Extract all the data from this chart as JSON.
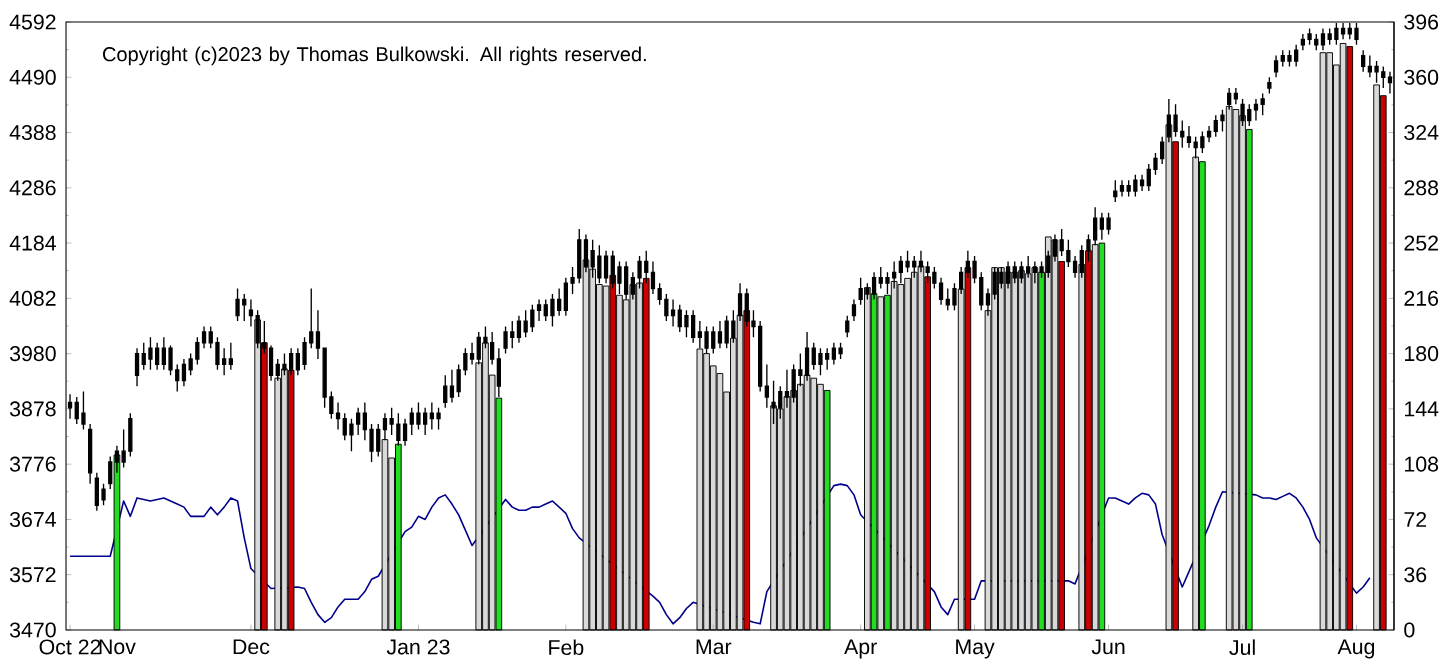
{
  "chart_data": {
    "type": "candlestick",
    "annotations": [
      "Copyright (c)2023 by Thomas Bulkowski. All rights reserved."
    ],
    "categories": [
      "Oct 22",
      null,
      null,
      null,
      null,
      null,
      null,
      "Nov",
      null,
      null,
      null,
      null,
      null,
      null,
      null,
      null,
      null,
      null,
      null,
      null,
      null,
      null,
      null,
      null,
      null,
      null,
      null,
      "Dec",
      null,
      null,
      null,
      null,
      null,
      null,
      null,
      null,
      null,
      null,
      null,
      null,
      null,
      null,
      null,
      null,
      null,
      null,
      null,
      null,
      null,
      null,
      null,
      null,
      "Jan 23",
      null,
      null,
      null,
      null,
      null,
      null,
      null,
      null,
      null,
      null,
      null,
      null,
      null,
      null,
      null,
      null,
      null,
      null,
      null,
      null,
      null,
      "Feb",
      null,
      null,
      null,
      null,
      null,
      null,
      null,
      null,
      null,
      null,
      null,
      null,
      null,
      null,
      null,
      null,
      null,
      null,
      null,
      null,
      null,
      "Mar",
      null,
      null,
      null,
      null,
      null,
      null,
      null,
      null,
      null,
      null,
      null,
      null,
      null,
      null,
      null,
      null,
      null,
      null,
      null,
      null,
      null,
      "Apr",
      null,
      null,
      null,
      null,
      null,
      null,
      null,
      null,
      null,
      null,
      null,
      null,
      null,
      null,
      null,
      null,
      "May",
      null,
      null,
      null,
      null,
      null,
      null,
      null,
      null,
      null,
      null,
      null,
      null,
      null,
      null,
      null,
      null,
      null,
      null,
      null,
      "Jun",
      null,
      null,
      null,
      null,
      null,
      null,
      null,
      null,
      null,
      null,
      null,
      null,
      null,
      null,
      null,
      null,
      null,
      null,
      null,
      "Jul",
      null,
      null,
      null,
      null,
      null,
      null,
      null,
      null,
      null,
      null,
      null,
      null,
      null,
      null,
      null,
      null,
      "Aug",
      null,
      null,
      null,
      null,
      null
    ],
    "ohlc": [
      [
        3880,
        3905,
        3860,
        3890
      ],
      [
        3890,
        3900,
        3850,
        3860
      ],
      [
        3870,
        3910,
        3840,
        3850
      ],
      [
        3840,
        3850,
        3740,
        3760
      ],
      [
        3750,
        3760,
        3690,
        3700
      ],
      [
        3710,
        3740,
        3700,
        3730
      ],
      [
        3740,
        3790,
        3730,
        3780
      ],
      [
        3780,
        3810,
        3760,
        3800
      ],
      [
        3800,
        3840,
        3770,
        3780
      ],
      [
        3800,
        3870,
        3790,
        3860
      ],
      [
        3940,
        3990,
        3920,
        3980
      ],
      [
        3980,
        4000,
        3950,
        3960
      ],
      [
        3970,
        4010,
        3950,
        3990
      ],
      [
        3990,
        4000,
        3950,
        3960
      ],
      [
        3960,
        4010,
        3950,
        3990
      ],
      [
        3990,
        3995,
        3940,
        3950
      ],
      [
        3950,
        3960,
        3910,
        3930
      ],
      [
        3930,
        3970,
        3920,
        3960
      ],
      [
        3950,
        3980,
        3940,
        3970
      ],
      [
        3970,
        4010,
        3960,
        4000
      ],
      [
        4000,
        4030,
        3990,
        4020
      ],
      [
        4020,
        4030,
        3990,
        4000
      ],
      [
        4000,
        4010,
        3950,
        3960
      ],
      [
        3960,
        3990,
        3940,
        3970
      ],
      [
        3970,
        4000,
        3950,
        3960
      ],
      [
        4050,
        4100,
        4040,
        4080
      ],
      [
        4080,
        4090,
        4040,
        4070
      ],
      [
        4060,
        4080,
        4030,
        4050
      ],
      [
        4050,
        4060,
        3990,
        4000
      ],
      [
        4000,
        4040,
        3980,
        3990
      ],
      [
        3990,
        3995,
        3930,
        3940
      ],
      [
        3940,
        3970,
        3930,
        3960
      ],
      [
        3960,
        3980,
        3940,
        3950
      ],
      [
        3950,
        3990,
        3940,
        3980
      ],
      [
        3980,
        3990,
        3940,
        3950
      ],
      [
        3960,
        4010,
        3950,
        4000
      ],
      [
        4000,
        4100,
        3990,
        4020
      ],
      [
        4020,
        4060,
        3970,
        3990
      ],
      [
        3990,
        3990,
        3880,
        3900
      ],
      [
        3900,
        3910,
        3860,
        3870
      ],
      [
        3870,
        3890,
        3840,
        3860
      ],
      [
        3860,
        3870,
        3820,
        3830
      ],
      [
        3830,
        3860,
        3800,
        3850
      ],
      [
        3850,
        3880,
        3830,
        3870
      ],
      [
        3870,
        3890,
        3820,
        3840
      ],
      [
        3840,
        3850,
        3780,
        3800
      ],
      [
        3800,
        3850,
        3790,
        3840
      ],
      [
        3840,
        3870,
        3820,
        3860
      ],
      [
        3860,
        3880,
        3830,
        3850
      ],
      [
        3850,
        3870,
        3810,
        3820
      ],
      [
        3820,
        3860,
        3810,
        3850
      ],
      [
        3850,
        3880,
        3830,
        3870
      ],
      [
        3870,
        3890,
        3840,
        3850
      ],
      [
        3850,
        3880,
        3830,
        3870
      ],
      [
        3870,
        3890,
        3840,
        3860
      ],
      [
        3860,
        3880,
        3840,
        3870
      ],
      [
        3890,
        3940,
        3880,
        3920
      ],
      [
        3920,
        3950,
        3890,
        3900
      ],
      [
        3910,
        3960,
        3900,
        3950
      ],
      [
        3950,
        3990,
        3940,
        3980
      ],
      [
        3980,
        4000,
        3960,
        3970
      ],
      [
        3970,
        4020,
        3960,
        4010
      ],
      [
        4010,
        4030,
        3990,
        4000
      ],
      [
        4000,
        4020,
        3960,
        3970
      ],
      [
        3970,
        3990,
        3900,
        3920
      ],
      [
        3990,
        4030,
        3980,
        4020
      ],
      [
        4020,
        4040,
        3990,
        4010
      ],
      [
        4010,
        4050,
        4000,
        4040
      ],
      [
        4040,
        4060,
        4010,
        4020
      ],
      [
        4030,
        4070,
        4020,
        4060
      ],
      [
        4060,
        4080,
        4040,
        4070
      ],
      [
        4070,
        4080,
        4040,
        4050
      ],
      [
        4050,
        4090,
        4030,
        4080
      ],
      [
        4080,
        4100,
        4050,
        4060
      ],
      [
        4060,
        4120,
        4050,
        4110
      ],
      [
        4110,
        4140,
        4090,
        4120
      ],
      [
        4120,
        4210,
        4110,
        4190
      ],
      [
        4190,
        4200,
        4130,
        4140
      ],
      [
        4140,
        4190,
        4120,
        4170
      ],
      [
        4160,
        4180,
        4110,
        4120
      ],
      [
        4120,
        4170,
        4110,
        4160
      ],
      [
        4160,
        4170,
        4100,
        4110
      ],
      [
        4110,
        4150,
        4090,
        4140
      ],
      [
        4140,
        4150,
        4080,
        4090
      ],
      [
        4090,
        4130,
        4080,
        4120
      ],
      [
        4120,
        4160,
        4100,
        4150
      ],
      [
        4150,
        4170,
        4110,
        4130
      ],
      [
        4130,
        4150,
        4090,
        4100
      ],
      [
        4100,
        4110,
        4070,
        4080
      ],
      [
        4080,
        4090,
        4040,
        4050
      ],
      [
        4050,
        4080,
        4030,
        4060
      ],
      [
        4060,
        4070,
        4020,
        4030
      ],
      [
        4030,
        4060,
        4010,
        4050
      ],
      [
        4050,
        4060,
        4000,
        4010
      ],
      [
        4010,
        4040,
        3990,
        4020
      ],
      [
        4020,
        4030,
        3980,
        3990
      ],
      [
        3990,
        4030,
        3980,
        4020
      ],
      [
        4020,
        4040,
        3990,
        4000
      ],
      [
        4000,
        4050,
        3990,
        4040
      ],
      [
        4040,
        4060,
        4000,
        4010
      ],
      [
        4050,
        4110,
        4040,
        4090
      ],
      [
        4090,
        4100,
        4030,
        4040
      ],
      [
        4040,
        4060,
        4010,
        4030
      ],
      [
        4030,
        4040,
        3910,
        3920
      ],
      [
        3920,
        3960,
        3880,
        3900
      ],
      [
        3890,
        3930,
        3850,
        3880
      ],
      [
        3880,
        3920,
        3860,
        3910
      ],
      [
        3910,
        3950,
        3880,
        3900
      ],
      [
        3900,
        3960,
        3890,
        3950
      ],
      [
        3950,
        3980,
        3920,
        3940
      ],
      [
        3940,
        4020,
        3930,
        3990
      ],
      [
        3990,
        4000,
        3950,
        3960
      ],
      [
        3960,
        3990,
        3940,
        3980
      ],
      [
        3980,
        3990,
        3950,
        3970
      ],
      [
        3970,
        4000,
        3960,
        3990
      ],
      [
        3990,
        4000,
        3970,
        3980
      ],
      [
        4020,
        4050,
        4010,
        4040
      ],
      [
        4050,
        4080,
        4040,
        4070
      ],
      [
        4080,
        4120,
        4070,
        4100
      ],
      [
        4100,
        4110,
        4080,
        4090
      ],
      [
        4090,
        4130,
        4080,
        4120
      ],
      [
        4110,
        4140,
        4100,
        4120
      ],
      [
        4110,
        4130,
        4090,
        4120
      ],
      [
        4120,
        4150,
        4100,
        4130
      ],
      [
        4130,
        4160,
        4110,
        4150
      ],
      [
        4150,
        4170,
        4130,
        4140
      ],
      [
        4140,
        4160,
        4120,
        4150
      ],
      [
        4150,
        4170,
        4130,
        4140
      ],
      [
        4140,
        4150,
        4110,
        4130
      ],
      [
        4130,
        4140,
        4100,
        4110
      ],
      [
        4110,
        4120,
        4070,
        4080
      ],
      [
        4080,
        4100,
        4060,
        4070
      ],
      [
        4070,
        4110,
        4060,
        4100
      ],
      [
        4100,
        4140,
        4090,
        4130
      ],
      [
        4130,
        4170,
        4120,
        4150
      ],
      [
        4150,
        4160,
        4110,
        4120
      ],
      [
        4120,
        4130,
        4060,
        4070
      ],
      [
        4070,
        4100,
        4050,
        4090
      ],
      [
        4090,
        4140,
        4080,
        4130
      ],
      [
        4130,
        4140,
        4100,
        4110
      ],
      [
        4110,
        4150,
        4100,
        4140
      ],
      [
        4140,
        4150,
        4110,
        4120
      ],
      [
        4120,
        4150,
        4110,
        4140
      ],
      [
        4140,
        4160,
        4120,
        4130
      ],
      [
        4130,
        4150,
        4110,
        4140
      ],
      [
        4140,
        4150,
        4120,
        4130
      ],
      [
        4130,
        4170,
        4120,
        4160
      ],
      [
        4160,
        4200,
        4150,
        4190
      ],
      [
        4190,
        4210,
        4160,
        4170
      ],
      [
        4170,
        4190,
        4140,
        4150
      ],
      [
        4150,
        4160,
        4120,
        4130
      ],
      [
        4130,
        4180,
        4120,
        4170
      ],
      [
        4170,
        4200,
        4150,
        4190
      ],
      [
        4190,
        4250,
        4180,
        4230
      ],
      [
        4230,
        4240,
        4190,
        4210
      ],
      [
        4210,
        4240,
        4200,
        4230
      ],
      [
        4270,
        4300,
        4260,
        4280
      ],
      [
        4280,
        4300,
        4270,
        4290
      ],
      [
        4290,
        4300,
        4270,
        4280
      ],
      [
        4280,
        4310,
        4270,
        4300
      ],
      [
        4300,
        4310,
        4280,
        4290
      ],
      [
        4290,
        4330,
        4280,
        4320
      ],
      [
        4320,
        4350,
        4310,
        4340
      ],
      [
        4340,
        4380,
        4330,
        4370
      ],
      [
        4380,
        4450,
        4370,
        4420
      ],
      [
        4420,
        4440,
        4380,
        4390
      ],
      [
        4390,
        4410,
        4360,
        4380
      ],
      [
        4380,
        4400,
        4360,
        4370
      ],
      [
        4370,
        4380,
        4340,
        4360
      ],
      [
        4360,
        4390,
        4350,
        4380
      ],
      [
        4380,
        4400,
        4370,
        4390
      ],
      [
        4390,
        4420,
        4380,
        4410
      ],
      [
        4410,
        4430,
        4390,
        4420
      ],
      [
        4440,
        4470,
        4430,
        4460
      ],
      [
        4460,
        4470,
        4440,
        4450
      ],
      [
        4440,
        4450,
        4400,
        4410
      ],
      [
        4410,
        4440,
        4400,
        4430
      ],
      [
        4430,
        4450,
        4410,
        4440
      ],
      [
        4440,
        4460,
        4420,
        4450
      ],
      [
        4470,
        4490,
        4460,
        4480
      ],
      [
        4500,
        4530,
        4490,
        4520
      ],
      [
        4520,
        4540,
        4510,
        4530
      ],
      [
        4530,
        4540,
        4510,
        4520
      ],
      [
        4520,
        4550,
        4510,
        4540
      ],
      [
        4550,
        4570,
        4540,
        4560
      ],
      [
        4560,
        4580,
        4550,
        4570
      ],
      [
        4560,
        4570,
        4540,
        4550
      ],
      [
        4550,
        4580,
        4540,
        4570
      ],
      [
        4570,
        4580,
        4550,
        4560
      ],
      [
        4560,
        4590,
        4550,
        4580
      ],
      [
        4580,
        4590,
        4560,
        4570
      ],
      [
        4570,
        4590,
        4560,
        4580
      ],
      [
        4580,
        4590,
        4550,
        4560
      ],
      [
        4530,
        4540,
        4500,
        4510
      ],
      [
        4510,
        4530,
        4490,
        4500
      ],
      [
        4500,
        4520,
        4480,
        4510
      ],
      [
        4500,
        4510,
        4470,
        4490
      ],
      [
        4490,
        4500,
        4460,
        4480
      ]
    ],
    "ylim": [
      3470,
      4592
    ],
    "yticks": [
      3470,
      3572,
      3674,
      3776,
      3878,
      3980,
      4082,
      4184,
      4286,
      4388,
      4490,
      4592
    ],
    "y2lim": [
      0,
      396
    ],
    "y2ticks": [
      0,
      36,
      72,
      108,
      144,
      180,
      216,
      252,
      288,
      324,
      360,
      396
    ],
    "series": [
      {
        "type": "bar",
        "axis": "y2",
        "values": [
          null,
          null,
          null,
          null,
          null,
          null,
          null,
          114,
          null,
          null,
          null,
          null,
          null,
          null,
          null,
          null,
          null,
          null,
          null,
          null,
          null,
          null,
          null,
          null,
          null,
          null,
          null,
          null,
          202,
          187,
          null,
          164,
          170,
          169,
          null,
          null,
          null,
          null,
          null,
          null,
          null,
          null,
          null,
          null,
          null,
          null,
          null,
          124,
          112,
          121,
          null,
          null,
          null,
          null,
          null,
          null,
          null,
          null,
          null,
          null,
          null,
          174,
          187,
          166,
          151,
          null,
          null,
          null,
          null,
          null,
          null,
          null,
          null,
          null,
          null,
          null,
          null,
          241,
          235,
          225,
          224,
          231,
          218,
          215,
          225,
          226,
          229,
          null,
          null,
          null,
          null,
          null,
          null,
          null,
          183,
          180,
          172,
          167,
          155,
          190,
          205,
          208,
          null,
          null,
          null,
          146,
          144,
          152,
          156,
          160,
          166,
          164,
          160,
          156,
          null,
          null,
          null,
          null,
          null,
          223,
          219,
          217,
          218,
          227,
          225,
          229,
          233,
          237,
          230,
          null,
          null,
          null,
          null,
          222,
          236,
          null,
          null,
          208,
          236,
          236,
          233,
          233,
          234,
          232,
          236,
          233,
          256,
          254,
          240,
          null,
          null,
          238,
          247,
          251,
          252,
          null,
          null,
          null,
          null,
          null,
          null,
          null,
          null,
          null,
          329,
          318,
          null,
          null,
          308,
          305,
          null,
          null,
          null,
          341,
          339,
          335,
          326,
          null,
          null,
          null,
          null,
          null,
          null,
          null,
          null,
          null,
          null,
          376,
          376,
          368,
          382,
          380,
          null,
          null,
          null,
          355,
          348,
          null
        ],
        "colors": [
          null,
          null,
          null,
          null,
          null,
          null,
          null,
          "#22dd22",
          null,
          null,
          null,
          null,
          null,
          null,
          null,
          null,
          null,
          null,
          null,
          null,
          null,
          null,
          null,
          null,
          null,
          null,
          null,
          null,
          "#d9d9d9",
          "#cc0000",
          null,
          "#d9d9d9",
          "#d9d9d9",
          "#cc0000",
          null,
          null,
          null,
          null,
          null,
          null,
          null,
          null,
          null,
          null,
          null,
          null,
          null,
          "#d9d9d9",
          "#d9d9d9",
          "#22dd22",
          null,
          null,
          null,
          null,
          null,
          null,
          null,
          null,
          null,
          null,
          null,
          "#d9d9d9",
          "#d9d9d9",
          "#d9d9d9",
          "#22dd22",
          null,
          null,
          null,
          null,
          null,
          null,
          null,
          null,
          null,
          null,
          null,
          null,
          "#d9d9d9",
          "#d9d9d9",
          "#d9d9d9",
          "#d9d9d9",
          "#cc0000",
          "#d9d9d9",
          "#d9d9d9",
          "#d9d9d9",
          "#d9d9d9",
          "#cc0000",
          null,
          null,
          null,
          null,
          null,
          null,
          null,
          "#d9d9d9",
          "#d9d9d9",
          "#d9d9d9",
          "#d9d9d9",
          "#d9d9d9",
          "#d9d9d9",
          "#d9d9d9",
          "#cc0000",
          null,
          null,
          null,
          "#d9d9d9",
          "#d9d9d9",
          "#d9d9d9",
          "#d9d9d9",
          "#d9d9d9",
          "#d9d9d9",
          "#d9d9d9",
          "#d9d9d9",
          "#22dd22",
          null,
          null,
          null,
          null,
          null,
          "#d9d9d9",
          "#22dd22",
          "#d9d9d9",
          "#22dd22",
          "#d9d9d9",
          "#d9d9d9",
          "#d9d9d9",
          "#d9d9d9",
          "#d9d9d9",
          "#cc0000",
          null,
          null,
          null,
          null,
          "#d9d9d9",
          "#cc0000",
          null,
          null,
          "#d9d9d9",
          "#d9d9d9",
          "#d9d9d9",
          "#d9d9d9",
          "#d9d9d9",
          "#d9d9d9",
          "#d9d9d9",
          "#d9d9d9",
          "#22dd22",
          "#d9d9d9",
          "#d9d9d9",
          "#cc0000",
          null,
          null,
          "#d9d9d9",
          "#cc0000",
          "#d9d9d9",
          "#22dd22",
          null,
          null,
          null,
          null,
          null,
          null,
          null,
          null,
          null,
          "#d9d9d9",
          "#cc0000",
          null,
          null,
          "#d9d9d9",
          "#22dd22",
          null,
          null,
          null,
          "#d9d9d9",
          "#d9d9d9",
          "#d9d9d9",
          "#22dd22",
          null,
          null,
          null,
          null,
          null,
          null,
          null,
          null,
          null,
          null,
          "#d9d9d9",
          "#d9d9d9",
          "#d9d9d9",
          "#d9d9d9",
          "#cc0000",
          null,
          null,
          null,
          "#d9d9d9",
          "#cc0000",
          null
        ]
      },
      {
        "type": "line",
        "axis": "y2",
        "color": "#00008b",
        "values": [
          48,
          48,
          48,
          48,
          48,
          48,
          48,
          null,
          84,
          74,
          86,
          85,
          84,
          85,
          86,
          84,
          82,
          80,
          74,
          74,
          74,
          80,
          75,
          80,
          86,
          84,
          60,
          40,
          null,
          null,
          27,
          null,
          null,
          null,
          28,
          27,
          18,
          10,
          5,
          8,
          15,
          20,
          20,
          20,
          25,
          33,
          35,
          null,
          null,
          null,
          64,
          67,
          74,
          72,
          80,
          86,
          88,
          82,
          75,
          65,
          55,
          null,
          null,
          null,
          null,
          85,
          80,
          78,
          78,
          80,
          80,
          82,
          84,
          80,
          76,
          66,
          60,
          null,
          null,
          null,
          null,
          null,
          null,
          null,
          null,
          null,
          null,
          22,
          18,
          10,
          4,
          8,
          14,
          18,
          null,
          null,
          null,
          null,
          null,
          null,
          null,
          null,
          5,
          4,
          25,
          null,
          null,
          null,
          null,
          null,
          null,
          null,
          null,
          null,
          94,
          95,
          94,
          88,
          75,
          null,
          null,
          null,
          null,
          null,
          null,
          null,
          null,
          null,
          null,
          25,
          15,
          10,
          20,
          null,
          null,
          20,
          32,
          null,
          null,
          null,
          null,
          null,
          null,
          null,
          null,
          null,
          null,
          null,
          null,
          32,
          30,
          null,
          null,
          null,
          null,
          86,
          86,
          84,
          82,
          86,
          89,
          88,
          82,
          62,
          null,
          null,
          28,
          38,
          null,
          null,
          68,
          80,
          90,
          null,
          null,
          null,
          null,
          88,
          86,
          86,
          85,
          87,
          89,
          86,
          80,
          72,
          60,
          null,
          null,
          null,
          null,
          null,
          24,
          28,
          34,
          null,
          null,
          null
        ]
      }
    ]
  }
}
